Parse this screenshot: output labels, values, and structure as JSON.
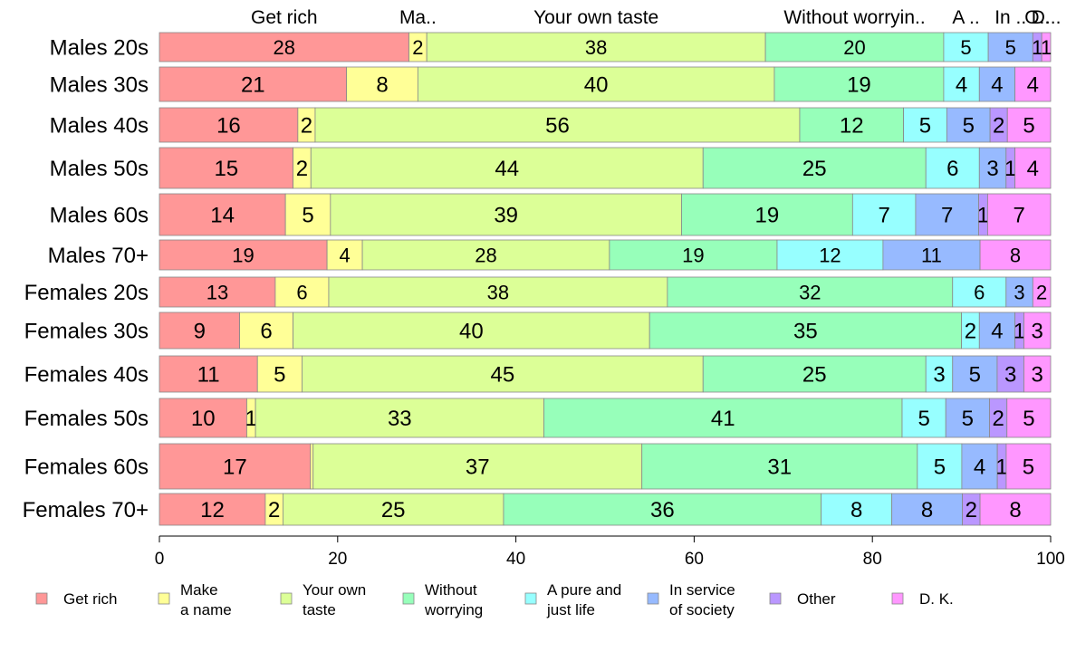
{
  "chart_data": {
    "type": "bar",
    "orientation": "horizontal",
    "stacked": true,
    "categories": [
      "Males 20s",
      "Males 30s",
      "Males 40s",
      "Males 50s",
      "Males 60s",
      "Males 70+",
      "Females 20s",
      "Females 30s",
      "Females 40s",
      "Females 50s",
      "Females 60s",
      "Females 70+"
    ],
    "series": [
      {
        "name": "Get rich",
        "header_label": "Get rich",
        "color": "#FF9797",
        "values": [
          28,
          21,
          16,
          15,
          14,
          19,
          13,
          9,
          11,
          10,
          17,
          12
        ]
      },
      {
        "name": "Make a name",
        "header_label": "Ma..",
        "color": "#FFFF97",
        "values": [
          2,
          8,
          2,
          2,
          5,
          4,
          6,
          6,
          5,
          1,
          0.3,
          2
        ]
      },
      {
        "name": "Your own taste",
        "header_label": "Your own taste",
        "color": "#DCFF97",
        "values": [
          38,
          40,
          56,
          44,
          39,
          28,
          38,
          40,
          45,
          33,
          37,
          25
        ]
      },
      {
        "name": "Without worrying",
        "header_label": "Without worryin..",
        "color": "#97FFBA",
        "values": [
          20,
          19,
          12,
          25,
          19,
          19,
          32,
          35,
          25,
          41,
          31,
          36
        ]
      },
      {
        "name": "A pure and just life",
        "header_label": "A ..",
        "color": "#97FFFF",
        "values": [
          5,
          4,
          5,
          6,
          7,
          12,
          6,
          2,
          3,
          5,
          5,
          8
        ]
      },
      {
        "name": "In service of society",
        "header_label": "In ..",
        "color": "#97BAFF",
        "values": [
          5,
          4,
          5,
          3,
          7,
          11,
          3,
          4,
          5,
          5,
          4,
          8
        ]
      },
      {
        "name": "Other",
        "header_label": "O..",
        "color": "#BA97FF",
        "values": [
          1,
          0,
          2,
          1,
          1,
          0,
          0,
          1,
          3,
          2,
          1,
          2
        ]
      },
      {
        "name": "D. K.",
        "header_label": "D...",
        "color": "#FF97FF",
        "values": [
          1,
          4,
          5,
          4,
          7,
          8,
          2,
          3,
          3,
          5,
          5,
          8
        ]
      }
    ],
    "legend_labels": [
      [
        "Get rich"
      ],
      [
        "Make",
        "a name"
      ],
      [
        "Your own",
        "taste"
      ],
      [
        "Without",
        "worrying"
      ],
      [
        "A pure and",
        "just life"
      ],
      [
        "In service",
        "of society"
      ],
      [
        "Other"
      ],
      [
        "D. K."
      ]
    ],
    "xlim": [
      0,
      100
    ],
    "xticks": [
      0,
      20,
      40,
      60,
      80,
      100
    ],
    "legend_position": "bottom",
    "grid": false,
    "xlabel": "",
    "ylabel": ""
  }
}
